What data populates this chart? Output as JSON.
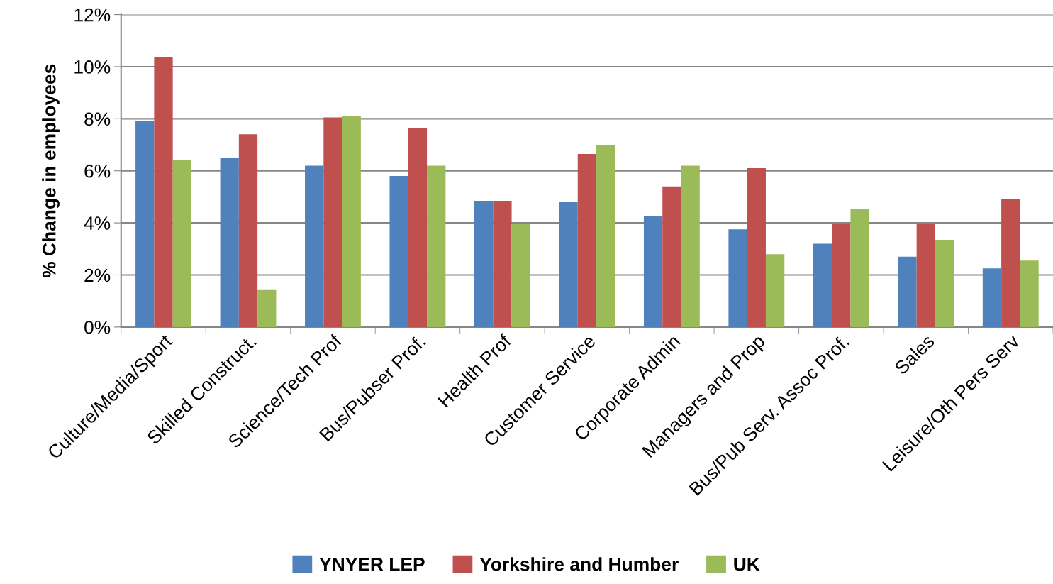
{
  "chart_data": {
    "type": "bar",
    "ylabel": "% Change in employees",
    "categories": [
      "Culture/Media/Sport",
      "Skilled Construct.",
      "Science/Tech Prof",
      "Bus/Pubser Prof.",
      "Health Prof",
      "Customer Service",
      "Corporate Admin",
      "Managers and Prop",
      "Bus/Pub Serv. Assoc Prof.",
      "Sales",
      "Leisure/Oth Pers Serv"
    ],
    "series": [
      {
        "name": "YNYER LEP",
        "color": "#4f81bd",
        "values": [
          7.9,
          6.5,
          6.2,
          5.8,
          4.85,
          4.8,
          4.25,
          3.75,
          3.2,
          2.7,
          2.25
        ]
      },
      {
        "name": "Yorkshire and Humber",
        "color": "#c0504d",
        "values": [
          10.35,
          7.4,
          8.05,
          7.65,
          4.85,
          6.65,
          5.4,
          6.1,
          3.95,
          3.95,
          4.9
        ]
      },
      {
        "name": "UK",
        "color": "#9bbb59",
        "values": [
          6.4,
          1.45,
          8.1,
          6.2,
          3.95,
          7.0,
          6.2,
          2.8,
          4.55,
          3.35,
          2.55
        ]
      }
    ],
    "ylim": [
      0,
      12
    ],
    "yticks": [
      {
        "value": 0,
        "label": "0%"
      },
      {
        "value": 2,
        "label": "2%"
      },
      {
        "value": 4,
        "label": "4%"
      },
      {
        "value": 6,
        "label": "6%"
      },
      {
        "value": 8,
        "label": "8%"
      },
      {
        "value": 10,
        "label": "10%"
      },
      {
        "value": 12,
        "label": "12%"
      }
    ],
    "grid": "y",
    "legend": "bottom"
  }
}
